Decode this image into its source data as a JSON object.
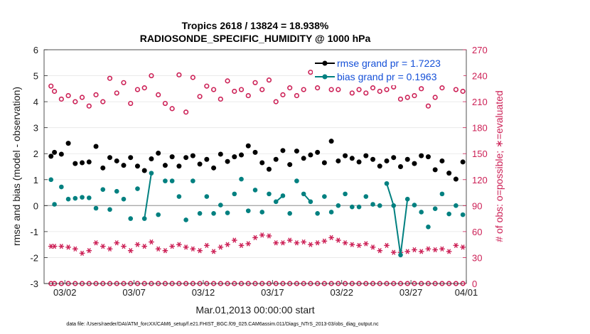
{
  "chart_data": {
    "type": "line",
    "title_line1": "Tropics 2618 / 13824 = 18.938%",
    "title_line2": "RADIOSONDE_SPECIFIC_HUMIDITY @ 1000 hPa",
    "xlabel": "Mar.01,2013 00:00:00 start",
    "ylabel_left": "rmse and bias (model - observation)",
    "ylabel_right": "# of obs: o=possible; ∗=evaluated",
    "xlim": [
      0.5,
      31
    ],
    "ylim_left": [
      -3,
      6
    ],
    "ylim_right": [
      0,
      270
    ],
    "x_ticks": [
      {
        "value": 2,
        "label": "03/02"
      },
      {
        "value": 7,
        "label": "03/07"
      },
      {
        "value": 12,
        "label": "03/12"
      },
      {
        "value": 17,
        "label": "03/17"
      },
      {
        "value": 22,
        "label": "03/22"
      },
      {
        "value": 27,
        "label": "03/27"
      },
      {
        "value": 32,
        "label": "04/01"
      }
    ],
    "y_ticks_left": [
      "-3",
      "-2",
      "-1",
      "0",
      "1",
      "2",
      "3",
      "4",
      "5",
      "6"
    ],
    "y_ticks_right": [
      "0",
      "30",
      "60",
      "90",
      "120",
      "150",
      "180",
      "210",
      "240",
      "270"
    ],
    "legend": [
      {
        "name": "rmse grand pr = 1.7223",
        "color": "#000000"
      },
      {
        "name": "bias grand pr = 0.1963",
        "color": "#008080"
      }
    ],
    "footnote": "data file: /Users/raeder/DAI/ATM_forcXX/CAM6_setup/f.e21.FHIST_BGC.f09_025.CAM6assim.011/Diags_NTrS_2013-03/obs_diag_output.nc",
    "series": [
      {
        "name": "rmse",
        "axis": "left",
        "color": "#000000",
        "x": [
          1.0,
          1.25,
          1.75,
          2.25,
          2.75,
          3.25,
          3.75,
          4.25,
          4.75,
          5.25,
          5.75,
          6.25,
          6.75,
          7.25,
          7.75,
          8.25,
          8.75,
          9.25,
          9.75,
          10.25,
          10.75,
          11.25,
          11.75,
          12.25,
          12.75,
          13.25,
          13.75,
          14.25,
          14.75,
          15.25,
          15.75,
          16.25,
          16.75,
          17.25,
          17.75,
          18.25,
          18.75,
          19.25,
          19.75,
          20.25,
          20.75,
          21.25,
          21.75,
          22.25,
          22.75,
          23.25,
          23.75,
          24.25,
          24.75,
          25.25,
          25.75,
          26.25,
          26.75,
          27.25,
          27.75,
          28.25,
          28.75,
          29.25,
          29.75,
          30.25,
          30.75
        ],
        "values": [
          1.9,
          2.05,
          1.98,
          2.4,
          1.62,
          1.65,
          1.68,
          2.28,
          1.45,
          1.85,
          1.72,
          1.55,
          1.85,
          1.52,
          1.35,
          1.8,
          2.02,
          1.55,
          1.88,
          1.52,
          1.85,
          1.92,
          1.6,
          1.78,
          1.45,
          1.98,
          1.7,
          1.88,
          1.95,
          2.3,
          2.05,
          1.65,
          1.4,
          1.78,
          2.12,
          1.58,
          2.1,
          1.82,
          1.95,
          2.05,
          1.65,
          2.48,
          1.72,
          1.92,
          1.82,
          1.68,
          1.92,
          1.78,
          1.52,
          1.72,
          1.85,
          1.5,
          1.78,
          1.62,
          1.92,
          1.88,
          1.38,
          1.72,
          1.25,
          1.02,
          1.68
        ],
        "lines": false
      },
      {
        "name": "bias",
        "axis": "left",
        "color": "#008080",
        "x": [
          1.0,
          1.25,
          1.75,
          2.25,
          2.75,
          3.25,
          3.75,
          4.25,
          4.75,
          5.25,
          5.75,
          6.25,
          6.75,
          7.25,
          7.75,
          8.25,
          8.75,
          9.25,
          9.75,
          10.25,
          10.75,
          11.25,
          11.75,
          12.25,
          12.75,
          13.25,
          13.75,
          14.25,
          14.75,
          15.25,
          15.75,
          16.25,
          16.75,
          17.25,
          17.75,
          18.25,
          18.75,
          19.25,
          19.75,
          20.25,
          20.75,
          21.25,
          21.75,
          22.25,
          22.75,
          23.25,
          23.75,
          24.25,
          24.75,
          25.25,
          25.75,
          26.25,
          26.75,
          27.25,
          27.75,
          28.25,
          28.75,
          29.25,
          29.75,
          30.25,
          30.75
        ],
        "values": [
          1.0,
          0.05,
          0.72,
          0.25,
          0.28,
          0.32,
          0.3,
          -0.1,
          0.62,
          -0.15,
          0.55,
          0.25,
          -0.5,
          0.65,
          -0.5,
          1.25,
          -0.35,
          0.95,
          0.95,
          0.35,
          -0.55,
          0.95,
          -0.3,
          0.35,
          -0.3,
          0.02,
          -0.28,
          0.45,
          1.02,
          -0.2,
          0.6,
          -0.25,
          0.45,
          0.15,
          0.38,
          -0.3,
          0.95,
          0.45,
          0.15,
          -0.3,
          0.35,
          -0.25,
          0.0,
          0.45,
          -0.05,
          -0.05,
          0.35,
          0.05,
          0.0,
          0.85,
          0.0,
          -1.9,
          0.25,
          0.02,
          -0.25,
          -0.82,
          -0.12,
          0.45,
          -0.32,
          0.0,
          -0.35
        ],
        "connected_pairs": [
          [
            14,
            15
          ],
          [
            33,
            34
          ],
          [
            37,
            38
          ],
          [
            49,
            50
          ],
          [
            50,
            51
          ],
          [
            51,
            52
          ]
        ]
      },
      {
        "name": "obs possible",
        "axis": "right",
        "color": "#cc1f55",
        "x": [
          1.0,
          1.25,
          1.75,
          2.25,
          2.75,
          3.25,
          3.75,
          4.25,
          4.75,
          5.25,
          5.75,
          6.25,
          6.75,
          7.25,
          7.75,
          8.25,
          8.75,
          9.25,
          9.75,
          10.25,
          10.75,
          11.25,
          11.75,
          12.25,
          12.75,
          13.25,
          13.75,
          14.25,
          14.75,
          15.25,
          15.75,
          16.25,
          16.75,
          17.25,
          17.75,
          18.25,
          18.75,
          19.25,
          19.75,
          20.25,
          20.75,
          21.25,
          21.75,
          22.25,
          22.75,
          23.25,
          23.75,
          24.25,
          24.75,
          25.25,
          25.75,
          26.25,
          26.75,
          27.25,
          27.75,
          28.25,
          28.75,
          29.25,
          29.75,
          30.25,
          30.75
        ],
        "values": [
          228,
          222,
          213,
          217,
          210,
          215,
          205,
          218,
          210,
          237,
          220,
          232,
          208,
          224,
          226,
          240,
          218,
          208,
          202,
          241,
          198,
          238,
          216,
          228,
          224,
          213,
          234,
          222,
          224,
          217,
          232,
          224,
          235,
          210,
          218,
          226,
          217,
          224,
          244,
          226,
          237,
          224,
          224,
          232,
          220,
          224,
          220,
          226,
          222,
          224,
          227,
          213,
          215,
          217,
          225,
          205,
          215,
          226,
          233,
          224,
          222
        ]
      },
      {
        "name": "obs evaluated",
        "axis": "right",
        "color": "#cc1f55",
        "x": [
          1.0,
          1.25,
          1.75,
          2.25,
          2.75,
          3.25,
          3.75,
          4.25,
          4.75,
          5.25,
          5.75,
          6.25,
          6.75,
          7.25,
          7.75,
          8.25,
          8.75,
          9.25,
          9.75,
          10.25,
          10.75,
          11.25,
          11.75,
          12.25,
          12.75,
          13.25,
          13.75,
          14.25,
          14.75,
          15.25,
          15.75,
          16.25,
          16.75,
          17.25,
          17.75,
          18.25,
          18.75,
          19.25,
          19.75,
          20.25,
          20.75,
          21.25,
          21.75,
          22.25,
          22.75,
          23.25,
          23.75,
          24.25,
          24.75,
          25.25,
          25.75,
          26.25,
          26.75,
          27.25,
          27.75,
          28.25,
          28.75,
          29.25,
          29.75,
          30.25,
          30.75
        ],
        "values": [
          43,
          43,
          43,
          42,
          40,
          35,
          38,
          47,
          43,
          40,
          47,
          43,
          38,
          45,
          43,
          48,
          40,
          38,
          43,
          45,
          42,
          40,
          38,
          44,
          37,
          42,
          45,
          50,
          44,
          46,
          53,
          56,
          55,
          47,
          47,
          50,
          47,
          48,
          45,
          47,
          49,
          53,
          50,
          47,
          45,
          44,
          46,
          42,
          38,
          44,
          36,
          36,
          37,
          39,
          37,
          40,
          39,
          40,
          37,
          44,
          42
        ]
      }
    ]
  }
}
